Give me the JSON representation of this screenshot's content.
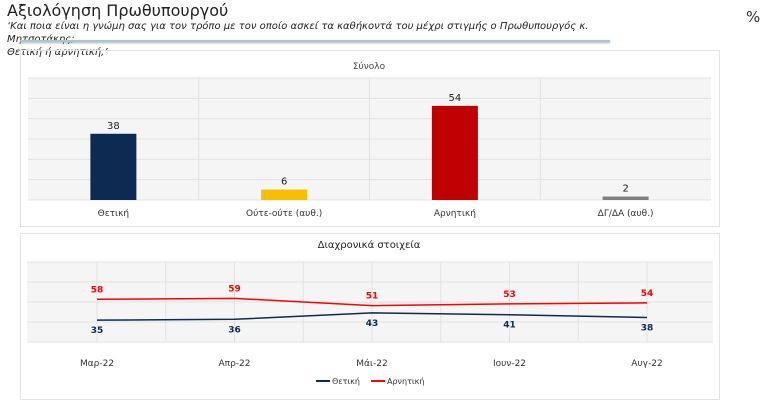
{
  "header": {
    "title": "Αξιολόγηση Πρωθυπουργού",
    "question_line1": "‘Και ποια είναι η γνώμη σας για τον τρόπο με τον οποίο ασκεί τα καθήκοντά του μέχρι στιγμής ο Πρωθυπουργός κ. Μητσοτάκης;",
    "question_line2": "Θετική ή αρνητική;’",
    "unit": "%"
  },
  "chart_data": [
    {
      "type": "bar",
      "title": "Σύνολο",
      "categories": [
        "Θετική",
        "Ούτε-ούτε (αυθ.)",
        "Αρνητική",
        "ΔΓ/ΔΑ (αυθ.)"
      ],
      "values": [
        38,
        6,
        54,
        2
      ],
      "colors": [
        "#0d2b52",
        "#f5c000",
        "#c00000",
        "#7f7f7f"
      ],
      "ylim": [
        0,
        70
      ],
      "grid": true
    },
    {
      "type": "line",
      "title": "Διαχρονικά στοιχεία",
      "categories": [
        "Μαρ-22",
        "Απρ-22",
        "Μάι-22",
        "Ιουν-22",
        "Αυγ-22"
      ],
      "series": [
        {
          "name": "Θετική",
          "values": [
            35,
            36,
            43,
            41,
            38
          ],
          "color": "#0d2b52"
        },
        {
          "name": "Αρνητική",
          "values": [
            58,
            59,
            51,
            53,
            54
          ],
          "color": "#ff0000"
        }
      ],
      "ylim": [
        11,
        99
      ],
      "legend": "bottom",
      "grid": true
    }
  ]
}
